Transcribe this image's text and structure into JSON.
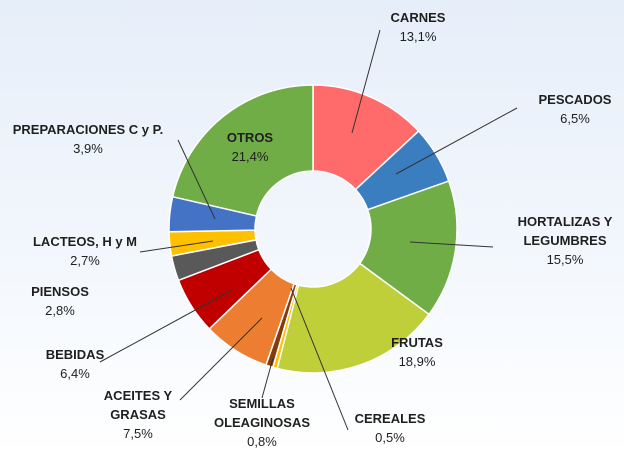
{
  "chart_data": {
    "type": "donut",
    "categories": [
      "CARNES",
      "PESCADOS",
      "HORTALIZAS Y LEGUMBRES",
      "FRUTAS",
      "CEREALES",
      "SEMILLAS OLEAGINOSAS",
      "ACEITES Y GRASAS",
      "BEBIDAS",
      "PIENSOS",
      "LACTEOS, H y M",
      "PREPARACIONES C y P.",
      "OTROS"
    ],
    "values": [
      13.1,
      6.5,
      15.5,
      18.9,
      0.5,
      0.8,
      7.5,
      6.4,
      2.8,
      2.7,
      3.9,
      21.4
    ],
    "value_labels": [
      "13,1%",
      "6,5%",
      "15,5%",
      "18,9%",
      "0,5%",
      "0,8%",
      "7,5%",
      "6,4%",
      "2,8%",
      "2,7%",
      "3,9%",
      "21,4%"
    ],
    "colors": [
      "#ff6b6b",
      "#3b7ec0",
      "#70ad47",
      "#bfcf3a",
      "#ffc000",
      "#843c0c",
      "#ed7d31",
      "#c00000",
      "#595959",
      "#ffc000",
      "#4472c4",
      "#70ad47"
    ]
  }
}
